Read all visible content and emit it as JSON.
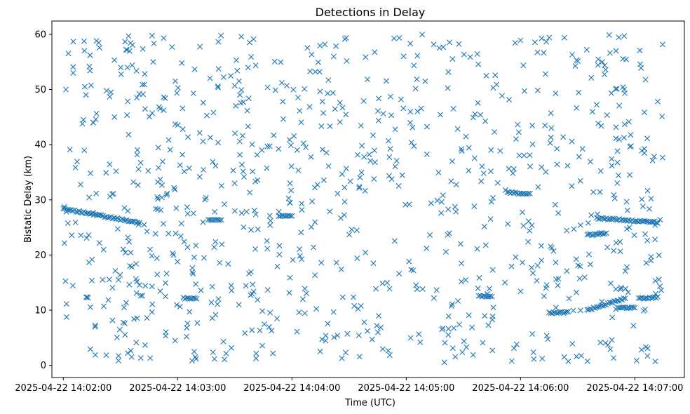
{
  "chart_data": {
    "type": "scatter",
    "title": "Detections in Delay",
    "xlabel": "Time (UTC)",
    "ylabel": "Bistatic Delay (km)",
    "marker": "x",
    "color": "#1f77b4",
    "grid": false,
    "xlim": [
      "2025-04-22 14:01:54",
      "2025-04-22 14:07:26"
    ],
    "ylim": [
      -2.2,
      62.4
    ],
    "x_ticks": [
      "2025-04-22 14:02:00",
      "2025-04-22 14:03:00",
      "2025-04-22 14:04:00",
      "2025-04-22 14:05:00",
      "2025-04-22 14:06:00",
      "2025-04-22 14:07:00"
    ],
    "y_ticks": [
      0,
      10,
      20,
      30,
      40,
      50,
      60
    ],
    "x_start": "2025-04-22 14:02:00",
    "x_end": "2025-04-22 14:07:15",
    "y_range": [
      0.5,
      60
    ],
    "tracks": [
      {
        "x_start": "2025-04-22 14:02:00",
        "x_end": "2025-04-22 14:02:40",
        "y_start": 28.4,
        "y_end": 25.8
      },
      {
        "x_start": "2025-04-22 14:02:12",
        "x_end": "2025-04-22 14:02:13",
        "y_start": 12.3,
        "y_end": 12.3
      },
      {
        "x_start": "2025-04-22 14:03:03",
        "x_end": "2025-04-22 14:03:10",
        "y_start": 12.2,
        "y_end": 12.0
      },
      {
        "x_start": "2025-04-22 14:03:16",
        "x_end": "2025-04-22 14:03:23",
        "y_start": 26.5,
        "y_end": 26.3
      },
      {
        "x_start": "2025-04-22 14:03:53",
        "x_end": "2025-04-22 14:04:00",
        "y_start": 27.0,
        "y_end": 27.2
      },
      {
        "x_start": "2025-04-22 14:05:38",
        "x_end": "2025-04-22 14:05:45",
        "y_start": 12.5,
        "y_end": 12.5
      },
      {
        "x_start": "2025-04-22 14:05:53",
        "x_end": "2025-04-22 14:06:05",
        "y_start": 31.4,
        "y_end": 31.0
      },
      {
        "x_start": "2025-04-22 14:06:15",
        "x_end": "2025-04-22 14:06:25",
        "y_start": 9.5,
        "y_end": 9.6
      },
      {
        "x_start": "2025-04-22 14:06:35",
        "x_end": "2025-04-22 14:06:55",
        "y_start": 10.0,
        "y_end": 12.2
      },
      {
        "x_start": "2025-04-22 14:06:35",
        "x_end": "2025-04-22 14:06:45",
        "y_start": 23.6,
        "y_end": 24.0
      },
      {
        "x_start": "2025-04-22 14:06:40",
        "x_end": "2025-04-22 14:07:12",
        "y_start": 26.7,
        "y_end": 25.9
      },
      {
        "x_start": "2025-04-22 14:06:50",
        "x_end": "2025-04-22 14:07:00",
        "y_start": 10.3,
        "y_end": 10.6
      },
      {
        "x_start": "2025-04-22 14:07:02",
        "x_end": "2025-04-22 14:07:12",
        "y_start": 12.1,
        "y_end": 12.3
      }
    ]
  }
}
